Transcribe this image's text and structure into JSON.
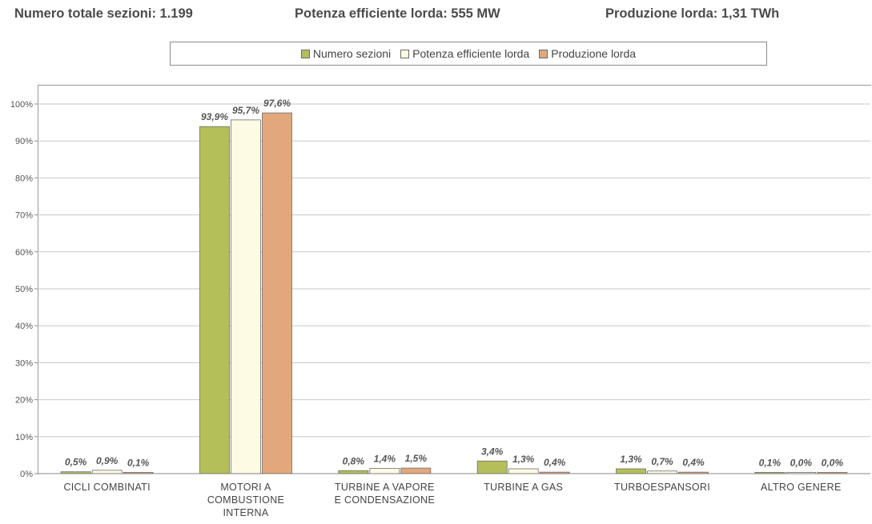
{
  "header": {
    "sections": "Numero totale sezioni: 1.199",
    "power": "Potenza efficiente lorda: 555 MW",
    "production": "Produzione lorda: 1,31 TWh"
  },
  "colors": {
    "Numero sezioni": "#b5bf5a",
    "Potenza efficiente lorda": "#fdfbe4",
    "Produzione lorda": "#e2a77a"
  },
  "chart_data": {
    "type": "bar",
    "categories": [
      [
        "CICLI COMBINATI"
      ],
      [
        "MOTORI A",
        "COMBUSTIONE",
        "INTERNA"
      ],
      [
        "TURBINE A VAPORE",
        "E CONDENSAZIONE"
      ],
      [
        "TURBINE A GAS"
      ],
      [
        "TURBOESPANSORI"
      ],
      [
        "ALTRO GENERE"
      ]
    ],
    "series": [
      {
        "name": "Numero sezioni",
        "values": [
          0.5,
          93.9,
          0.8,
          3.4,
          1.3,
          0.1
        ],
        "labels": [
          "0,5%",
          "93,9%",
          "0,8%",
          "3,4%",
          "1,3%",
          "0,1%"
        ]
      },
      {
        "name": "Potenza efficiente lorda",
        "values": [
          0.9,
          95.7,
          1.4,
          1.3,
          0.7,
          0.0
        ],
        "labels": [
          "0,9%",
          "95,7%",
          "1,4%",
          "1,3%",
          "0,7%",
          "0,0%"
        ]
      },
      {
        "name": "Produzione lorda",
        "values": [
          0.1,
          97.6,
          1.5,
          0.4,
          0.4,
          0.0
        ],
        "labels": [
          "0,1%",
          "97,6%",
          "1,5%",
          "0,4%",
          "0,4%",
          "0,0%"
        ]
      }
    ],
    "yticks": [
      "0%",
      "10%",
      "20%",
      "30%",
      "40%",
      "50%",
      "60%",
      "70%",
      "80%",
      "90%",
      "100%"
    ],
    "ylim": [
      0,
      100
    ],
    "grid": true,
    "legend_position": "top"
  }
}
